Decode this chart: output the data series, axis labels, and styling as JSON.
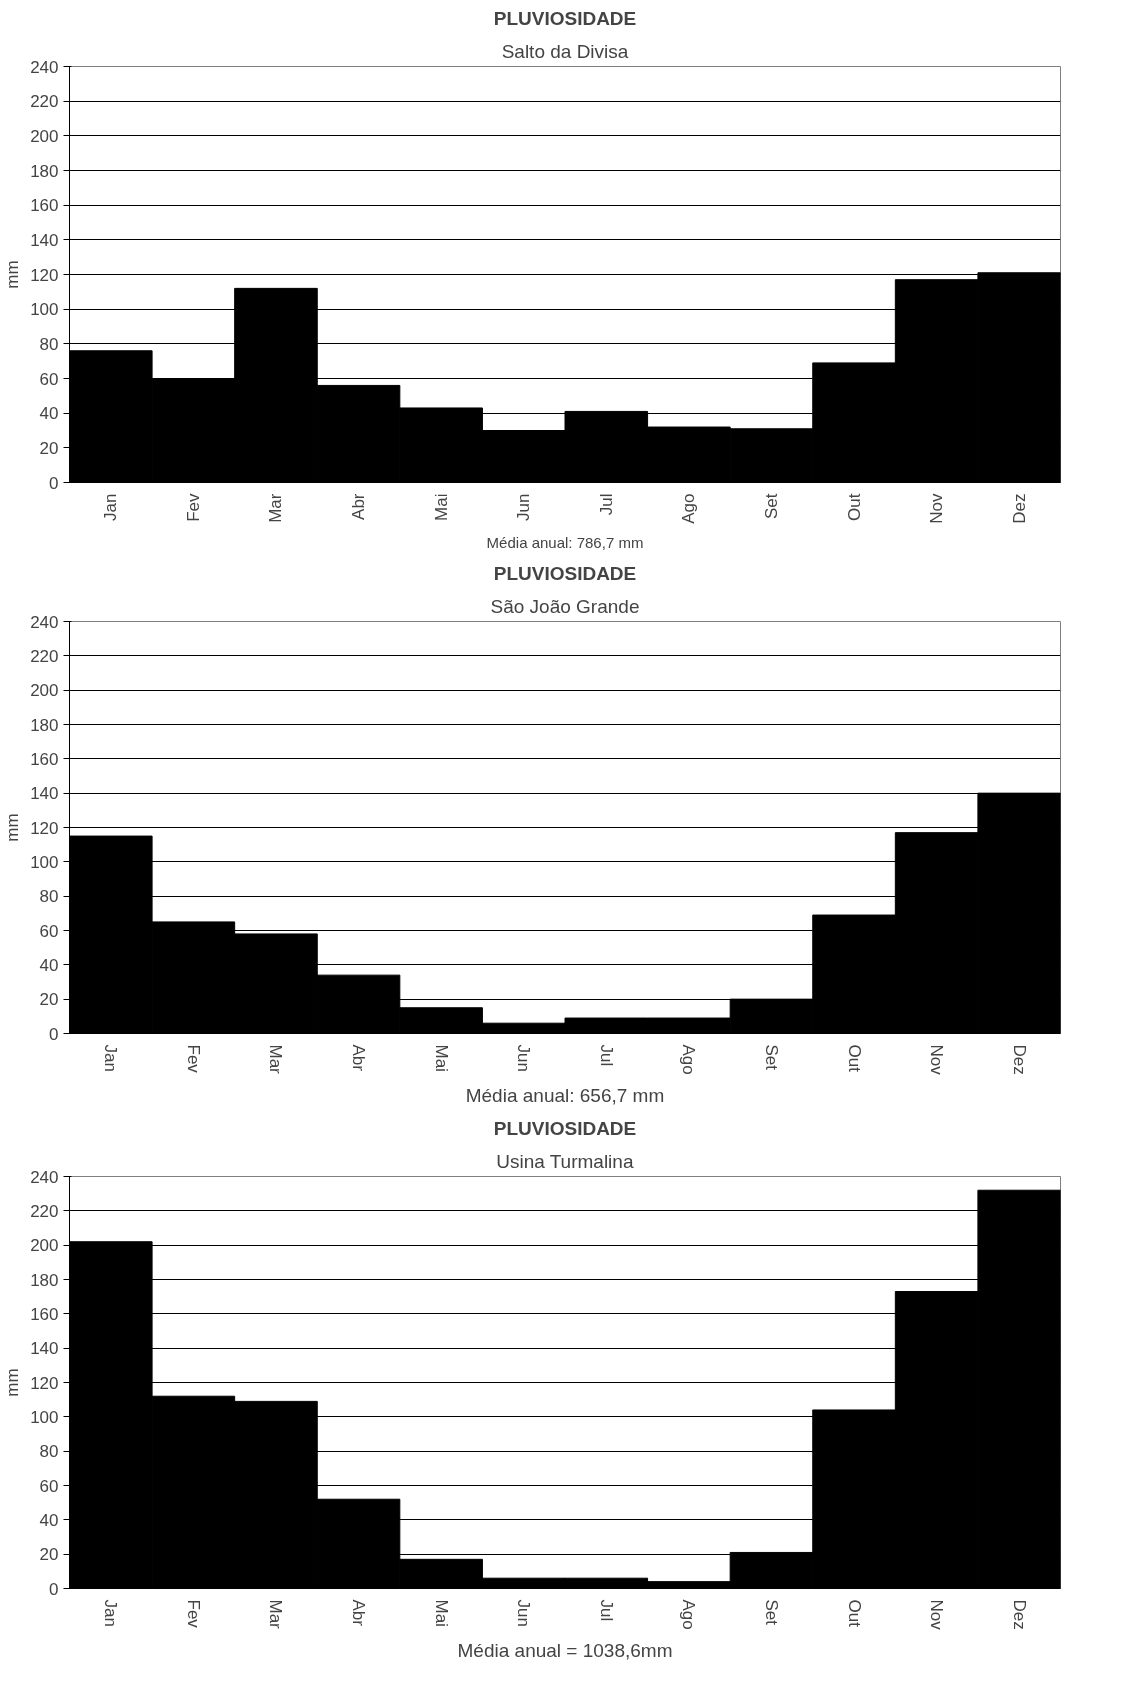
{
  "chart_data": [
    {
      "type": "bar",
      "title": "PLUVIOSIDADE",
      "subtitle": "Salto da Divisa",
      "ylabel": "mm",
      "categories": [
        "Jan",
        "Fev",
        "Mar",
        "Abr",
        "Mai",
        "Jun",
        "Jul",
        "Ago",
        "Set",
        "Out",
        "Nov",
        "Dez"
      ],
      "values": [
        76,
        60,
        112,
        56,
        43,
        30,
        41,
        32,
        31,
        69,
        117,
        121
      ],
      "color": "#000000",
      "ylim": [
        0,
        240
      ],
      "yticks": [
        0,
        20,
        40,
        60,
        80,
        100,
        120,
        140,
        160,
        180,
        200,
        220,
        240
      ],
      "grid": "y",
      "annotations": [
        "Média anual: 786,7 mm"
      ]
    },
    {
      "type": "bar",
      "title": "PLUVIOSIDADE",
      "subtitle": "São João Grande",
      "ylabel": "mm",
      "categories": [
        "Jan",
        "Fev",
        "Mar",
        "Abr",
        "Mai",
        "Jun",
        "Jul",
        "Ago",
        "Set",
        "Out",
        "Nov",
        "Dez"
      ],
      "values": [
        115,
        65,
        58,
        34,
        15,
        6,
        9,
        9,
        20,
        69,
        117,
        140
      ],
      "color": "#000000",
      "ylim": [
        0,
        240
      ],
      "yticks": [
        0,
        20,
        40,
        60,
        80,
        100,
        120,
        140,
        160,
        180,
        200,
        220,
        240
      ],
      "grid": "y",
      "annotations": [
        "Média anual: 656,7 mm"
      ]
    },
    {
      "type": "bar",
      "title": "PLUVIOSIDADE",
      "subtitle": "Usina Turmalina",
      "ylabel": "mm",
      "categories": [
        "Jan",
        "Fev",
        "Mar",
        "Abr",
        "Mai",
        "Jun",
        "Jul",
        "Ago",
        "Set",
        "Out",
        "Nov",
        "Dez"
      ],
      "values": [
        202,
        112,
        109,
        52,
        17,
        6,
        6,
        4,
        21,
        104,
        173,
        232
      ],
      "color": "#000000",
      "ylim": [
        0,
        240
      ],
      "yticks": [
        0,
        20,
        40,
        60,
        80,
        100,
        120,
        140,
        160,
        180,
        200,
        220,
        240
      ],
      "grid": "y",
      "annotations": [
        "Média anual = 1038,6mm"
      ]
    }
  ]
}
